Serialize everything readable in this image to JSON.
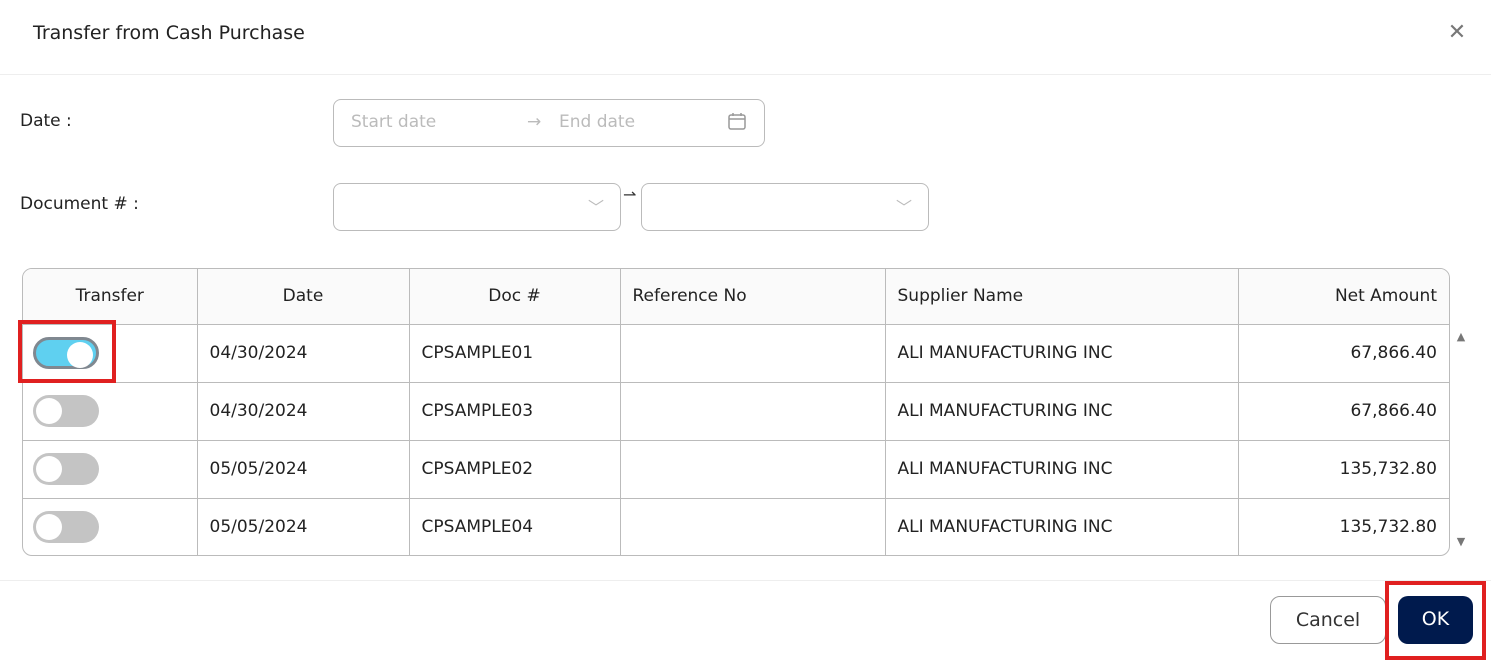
{
  "dialog": {
    "title": "Transfer from Cash Purchase",
    "close_icon": "close-icon"
  },
  "filters": {
    "date_label": "Date :",
    "start_placeholder": "Start date",
    "end_placeholder": "End date",
    "arrow": "→",
    "document_label": "Document # :",
    "doc_arrow": "⇀"
  },
  "table": {
    "headers": [
      "Transfer",
      "Date",
      "Doc #",
      "Reference No",
      "Supplier Name",
      "Net Amount"
    ],
    "rows": [
      {
        "transfer": true,
        "date": "04/30/2024",
        "doc": "CPSAMPLE01",
        "ref": "",
        "supplier": "ALI MANUFACTURING INC",
        "amount": "67,866.40"
      },
      {
        "transfer": false,
        "date": "04/30/2024",
        "doc": "CPSAMPLE03",
        "ref": "",
        "supplier": "ALI MANUFACTURING INC",
        "amount": "67,866.40"
      },
      {
        "transfer": false,
        "date": "05/05/2024",
        "doc": "CPSAMPLE02",
        "ref": "",
        "supplier": "ALI MANUFACTURING INC",
        "amount": "135,732.80"
      },
      {
        "transfer": false,
        "date": "05/05/2024",
        "doc": "CPSAMPLE04",
        "ref": "",
        "supplier": "ALI MANUFACTURING INC",
        "amount": "135,732.80"
      }
    ]
  },
  "footer": {
    "cancel": "Cancel",
    "ok": "OK"
  },
  "colors": {
    "primary": "#001a4d",
    "toggle_on": "#5fd0f0",
    "highlight": "#e02020"
  }
}
